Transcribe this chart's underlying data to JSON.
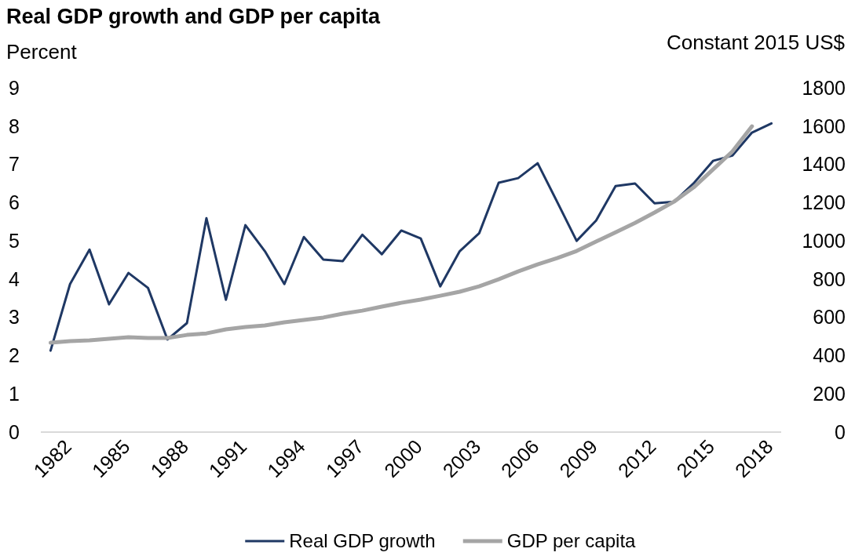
{
  "chart_data": {
    "type": "line",
    "title": "Real GDP growth and GDP per capita",
    "ylabel": "Percent",
    "y2label": "Constant 2015 US$",
    "x": [
      1982,
      1983,
      1984,
      1985,
      1986,
      1987,
      1988,
      1989,
      1990,
      1991,
      1992,
      1993,
      1994,
      1995,
      1996,
      1997,
      1998,
      1999,
      2000,
      2001,
      2002,
      2003,
      2004,
      2005,
      2006,
      2007,
      2008,
      2009,
      2010,
      2011,
      2012,
      2013,
      2014,
      2015,
      2016,
      2017,
      2018,
      2019
    ],
    "xlim": [
      1981.5,
      2019.5
    ],
    "xticks": [
      1982,
      1985,
      1988,
      1991,
      1994,
      1997,
      2000,
      2003,
      2006,
      2009,
      2012,
      2015,
      2018
    ],
    "ylim": [
      0,
      9
    ],
    "yticks": [
      0,
      1,
      2,
      3,
      4,
      5,
      6,
      7,
      8,
      9
    ],
    "y2lim": [
      0,
      1800
    ],
    "y2ticks": [
      0,
      200,
      400,
      600,
      800,
      1000,
      1200,
      1400,
      1600,
      1800
    ],
    "series": [
      {
        "name": "Real GDP growth",
        "color": "#1f3864",
        "values": [
          2.13,
          3.87,
          4.77,
          3.34,
          4.16,
          3.77,
          2.42,
          2.85,
          5.59,
          3.46,
          5.41,
          4.73,
          3.87,
          5.1,
          4.51,
          4.47,
          5.16,
          4.65,
          5.27,
          5.06,
          3.81,
          4.73,
          5.2,
          6.52,
          6.64,
          7.03,
          6.02,
          5.0,
          5.53,
          6.43,
          6.5,
          5.98,
          6.02,
          6.5,
          7.09,
          7.23,
          7.83,
          8.07
        ]
      },
      {
        "name": "GDP per capita",
        "color": "#a5a5a5",
        "axis": "y2",
        "values": [
          467,
          476,
          480,
          488,
          496,
          492,
          492,
          508,
          516,
          537,
          549,
          558,
          574,
          586,
          599,
          619,
          635,
          656,
          676,
          693,
          713,
          734,
          762,
          799,
          840,
          877,
          910,
          947,
          996,
          1045,
          1094,
          1148,
          1205,
          1279,
          1373,
          1468,
          1599,
          null
        ]
      }
    ],
    "grid": false,
    "legend": "bottom"
  }
}
